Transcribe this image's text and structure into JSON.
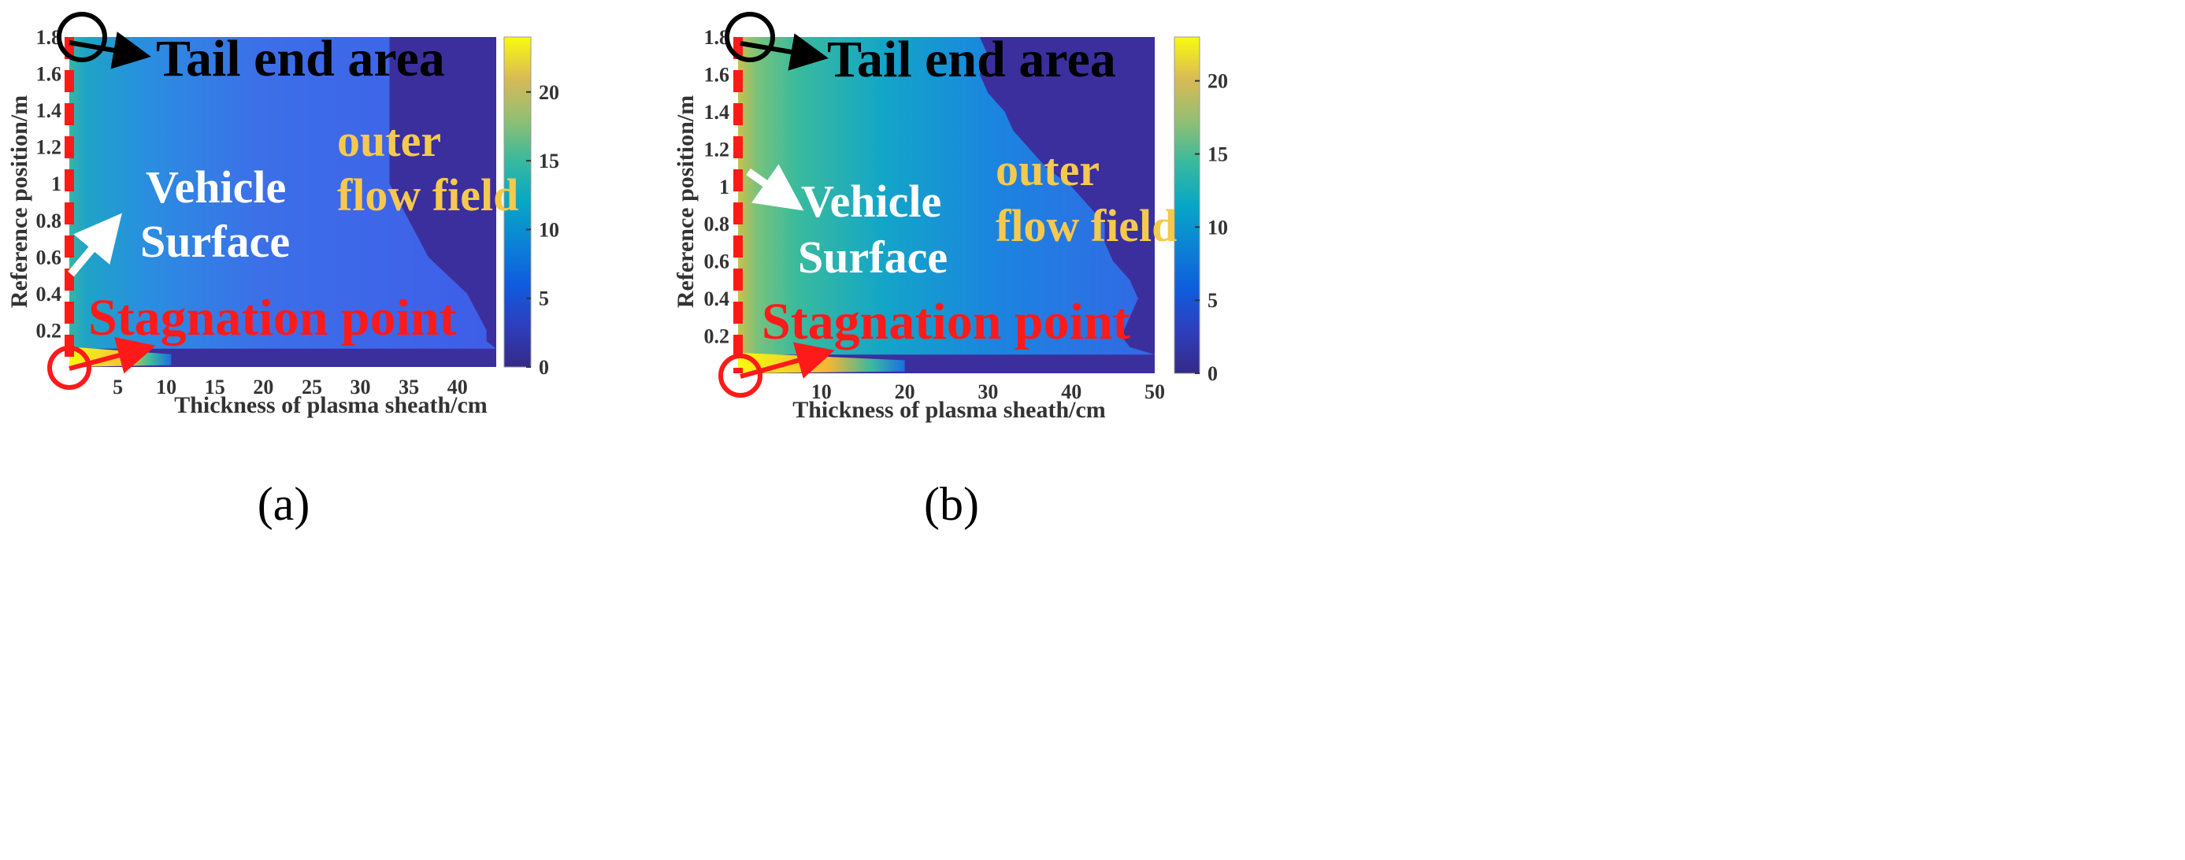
{
  "chart_data": [
    {
      "panel_label": "(a)",
      "type": "heatmap",
      "title": "",
      "xlabel": "Thickness of plasma sheath/cm",
      "ylabel": "Reference position/m",
      "xlim": [
        0,
        44
      ],
      "ylim": [
        0,
        1.8
      ],
      "x_ticks": [
        {
          "value": 5,
          "label": "5"
        },
        {
          "value": 10,
          "label": "10"
        },
        {
          "value": 15,
          "label": "15"
        },
        {
          "value": 20,
          "label": "20"
        },
        {
          "value": 25,
          "label": "25"
        },
        {
          "value": 30,
          "label": "30"
        },
        {
          "value": 35,
          "label": "35"
        },
        {
          "value": 40,
          "label": "40"
        }
      ],
      "y_ticks": [
        {
          "value": 0.2,
          "label": "0.2"
        },
        {
          "value": 0.4,
          "label": "0.4"
        },
        {
          "value": 0.6,
          "label": "0.6"
        },
        {
          "value": 0.8,
          "label": "0.8"
        },
        {
          "value": 1.0,
          "label": "1"
        },
        {
          "value": 1.2,
          "label": "1.2"
        },
        {
          "value": 1.4,
          "label": "1.4"
        },
        {
          "value": 1.6,
          "label": "1.6"
        },
        {
          "value": 1.8,
          "label": "1.8"
        }
      ],
      "colorbar": {
        "min": 0,
        "max": 24,
        "ticks": [
          {
            "value": 0,
            "label": "0"
          },
          {
            "value": 5,
            "label": "5"
          },
          {
            "value": 10,
            "label": "10"
          },
          {
            "value": 15,
            "label": "15"
          },
          {
            "value": 20,
            "label": "20"
          }
        ]
      },
      "boundary_extent_cm": [
        [
          0.0,
          44
        ],
        [
          0.1,
          44
        ],
        [
          0.14,
          43
        ],
        [
          0.2,
          43
        ],
        [
          0.3,
          42
        ],
        [
          0.4,
          41
        ],
        [
          0.5,
          39
        ],
        [
          0.6,
          37
        ],
        [
          0.7,
          36
        ],
        [
          0.8,
          35
        ],
        [
          0.9,
          34
        ],
        [
          1.0,
          33
        ],
        [
          1.1,
          33
        ],
        [
          1.2,
          33
        ],
        [
          1.3,
          33
        ],
        [
          1.4,
          33
        ],
        [
          1.5,
          33
        ],
        [
          1.6,
          33
        ],
        [
          1.7,
          33
        ],
        [
          1.8,
          33
        ]
      ],
      "vehicle_surface_value": 14,
      "annotations": [
        {
          "text": "Tail end area",
          "color": "#000000"
        },
        {
          "text": "Vehicle",
          "color": "#ffffff"
        },
        {
          "text": "Surface",
          "color": "#ffffff"
        },
        {
          "text": "outer",
          "color": "#f5c94e"
        },
        {
          "text": "flow field",
          "color": "#f5c94e"
        },
        {
          "text": "Stagnation point",
          "color": "#ff1a1a"
        }
      ]
    },
    {
      "panel_label": "(b)",
      "type": "heatmap",
      "title": "",
      "xlabel": "Thickness of plasma sheath/cm",
      "ylabel": "Reference position/m",
      "xlim": [
        0,
        50
      ],
      "ylim": [
        0,
        1.8
      ],
      "x_ticks": [
        {
          "value": 10,
          "label": "10"
        },
        {
          "value": 20,
          "label": "20"
        },
        {
          "value": 30,
          "label": "30"
        },
        {
          "value": 40,
          "label": "40"
        },
        {
          "value": 50,
          "label": "50"
        }
      ],
      "y_ticks": [
        {
          "value": 0.2,
          "label": "0.2"
        },
        {
          "value": 0.4,
          "label": "0.4"
        },
        {
          "value": 0.6,
          "label": "0.6"
        },
        {
          "value": 0.8,
          "label": "0.8"
        },
        {
          "value": 1.0,
          "label": "1"
        },
        {
          "value": 1.2,
          "label": "1.2"
        },
        {
          "value": 1.4,
          "label": "1.4"
        },
        {
          "value": 1.6,
          "label": "1.6"
        },
        {
          "value": 1.8,
          "label": "1.8"
        }
      ],
      "colorbar": {
        "min": 0,
        "max": 23,
        "ticks": [
          {
            "value": 0,
            "label": "0"
          },
          {
            "value": 5,
            "label": "5"
          },
          {
            "value": 10,
            "label": "10"
          },
          {
            "value": 15,
            "label": "15"
          },
          {
            "value": 20,
            "label": "20"
          }
        ]
      },
      "boundary_extent_cm": [
        [
          0.0,
          50
        ],
        [
          0.1,
          50
        ],
        [
          0.14,
          47
        ],
        [
          0.2,
          46
        ],
        [
          0.3,
          47
        ],
        [
          0.4,
          48
        ],
        [
          0.5,
          47
        ],
        [
          0.6,
          45
        ],
        [
          0.7,
          44
        ],
        [
          0.8,
          44
        ],
        [
          0.9,
          42
        ],
        [
          1.0,
          40
        ],
        [
          1.1,
          37
        ],
        [
          1.2,
          35
        ],
        [
          1.3,
          33
        ],
        [
          1.4,
          32
        ],
        [
          1.5,
          30
        ],
        [
          1.6,
          29
        ],
        [
          1.7,
          30
        ],
        [
          1.8,
          29
        ]
      ],
      "vehicle_surface_value": 17,
      "annotations": [
        {
          "text": "Tail end area",
          "color": "#000000"
        },
        {
          "text": "Vehicle",
          "color": "#ffffff"
        },
        {
          "text": "Surface",
          "color": "#ffffff"
        },
        {
          "text": "outer",
          "color": "#f5c94e"
        },
        {
          "text": "flow field",
          "color": "#f5c94e"
        },
        {
          "text": "Stagnation point",
          "color": "#ff1a1a"
        }
      ]
    }
  ],
  "colors": {
    "outer_flow_field": "#3b2f9e",
    "annotation_red": "#ff1a1a",
    "annotation_yellow": "#f5c94e",
    "text_dark": "#333333"
  }
}
